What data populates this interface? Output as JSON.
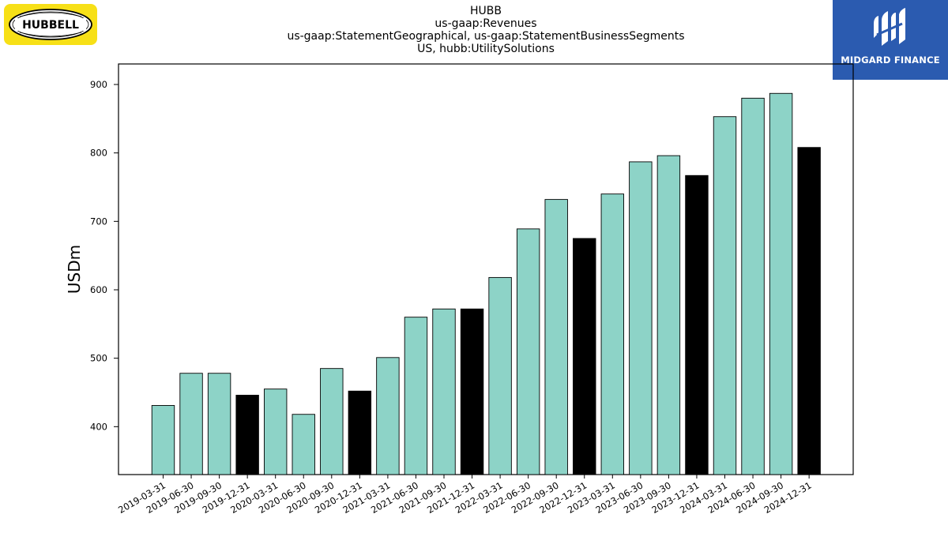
{
  "title_lines": [
    "HUBB",
    "us-gaap:Revenues",
    "us-gaap:StatementGeographical, us-gaap:StatementBusinessSegments",
    "US, hubb:UtilitySolutions"
  ],
  "logos": {
    "left": "HUBBELL",
    "right": "MIDGARD FINANCE"
  },
  "colors": {
    "quarter_bar": "#8dd3c7",
    "annual_bar": "#000000",
    "bar_edge": "#000000"
  },
  "chart_data": {
    "type": "bar",
    "title": "HUBB",
    "ylabel": "USDm",
    "xlabel": "",
    "ylim": [
      330,
      930
    ],
    "yticks": [
      400,
      500,
      600,
      700,
      800,
      900
    ],
    "categories": [
      "2019-03-31",
      "2019-06-30",
      "2019-09-30",
      "2019-12-31",
      "2020-03-31",
      "2020-06-30",
      "2020-09-30",
      "2020-12-31",
      "2021-03-31",
      "2021-06-30",
      "2021-09-30",
      "2021-12-31",
      "2022-03-31",
      "2022-06-30",
      "2022-09-30",
      "2022-12-31",
      "2023-03-31",
      "2023-06-30",
      "2023-09-30",
      "2023-12-31",
      "2024-03-31",
      "2024-06-30",
      "2024-09-30",
      "2024-12-31"
    ],
    "values": [
      431,
      478,
      478,
      446,
      455,
      418,
      485,
      452,
      501,
      560,
      572,
      572,
      618,
      689,
      732,
      675,
      740,
      787,
      796,
      767,
      853,
      880,
      887,
      808
    ],
    "annual": [
      false,
      false,
      false,
      true,
      false,
      false,
      false,
      true,
      false,
      false,
      false,
      true,
      false,
      false,
      false,
      true,
      false,
      false,
      false,
      true,
      false,
      false,
      false,
      true
    ],
    "grid": false,
    "legend": "none"
  }
}
